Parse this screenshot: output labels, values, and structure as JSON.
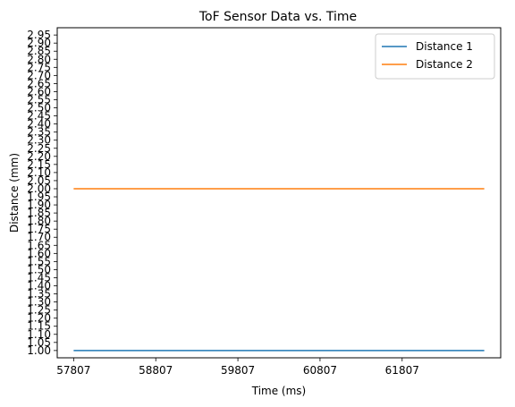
{
  "chart_data": {
    "type": "line",
    "title": "ToF Sensor Data vs. Time",
    "xlabel": "Time (ms)",
    "ylabel": "Distance (mm)",
    "xlim": [
      57607,
      63007
    ],
    "ylim": [
      0.955,
      2.995
    ],
    "xticks": [
      57807,
      58807,
      59807,
      60807,
      61807
    ],
    "yticks": [
      1.0,
      1.05,
      1.1,
      1.15,
      1.2,
      1.25,
      1.3,
      1.35,
      1.4,
      1.45,
      1.5,
      1.55,
      1.6,
      1.65,
      1.7,
      1.75,
      1.8,
      1.85,
      1.9,
      1.95,
      2.0,
      2.05,
      2.1,
      2.15,
      2.2,
      2.25,
      2.3,
      2.35,
      2.4,
      2.45,
      2.5,
      2.55,
      2.6,
      2.65,
      2.7,
      2.75,
      2.8,
      2.85,
      2.9,
      2.95
    ],
    "ytick_decimals": 2,
    "grid": false,
    "legend": "top-right",
    "series": [
      {
        "name": "Distance 1",
        "color": "#1f77b4",
        "x": [
          57807,
          62807
        ],
        "y": [
          1.0,
          1.0
        ]
      },
      {
        "name": "Distance 2",
        "color": "#ff7f0e",
        "x": [
          57807,
          62807
        ],
        "y": [
          2.0,
          2.0
        ]
      }
    ]
  }
}
